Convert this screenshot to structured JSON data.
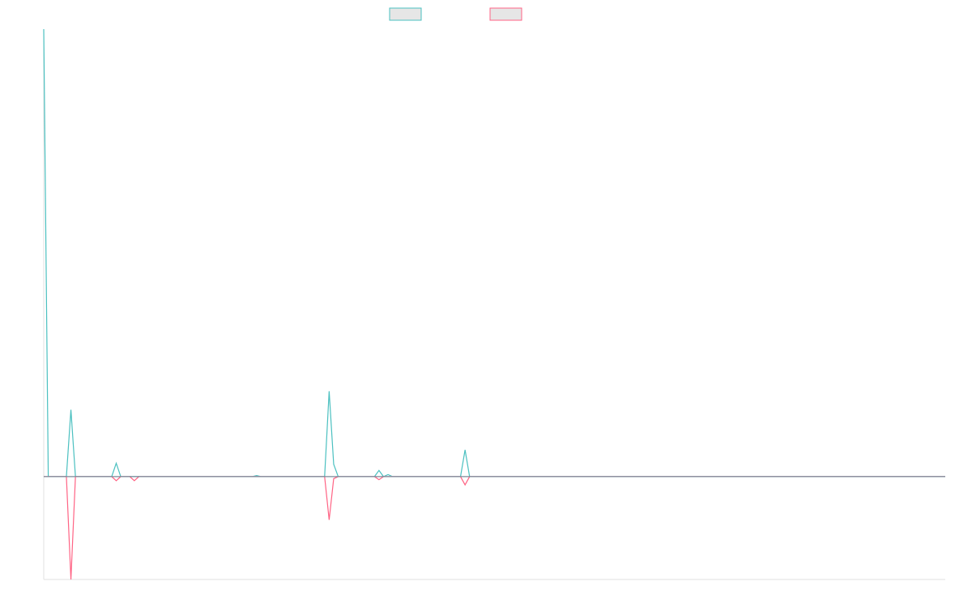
{
  "chart_data": {
    "type": "line",
    "title": "",
    "xlabel": "",
    "ylabel": "",
    "grid": false,
    "legend_position": "top-center",
    "colors": {
      "series_a": "#4bc0c0",
      "series_b": "#ff6384",
      "legend_fill": "#e6e6e6",
      "axis": "#e0e0e0"
    },
    "ylim": [
      -100,
      435
    ],
    "x_count": 200,
    "series": [
      {
        "name": "",
        "color": "#4bc0c0",
        "points": [
          [
            0,
            435
          ],
          [
            1,
            0
          ],
          [
            5,
            0
          ],
          [
            6,
            65
          ],
          [
            7,
            0
          ],
          [
            15,
            0
          ],
          [
            16,
            13
          ],
          [
            17,
            0
          ],
          [
            18,
            0
          ],
          [
            19,
            0
          ],
          [
            20,
            0
          ],
          [
            21,
            0
          ],
          [
            46,
            0
          ],
          [
            47,
            1
          ],
          [
            48,
            0
          ],
          [
            62,
            0
          ],
          [
            63,
            83
          ],
          [
            64,
            12
          ],
          [
            65,
            0
          ],
          [
            73,
            0
          ],
          [
            74,
            6
          ],
          [
            75,
            0
          ],
          [
            76,
            2
          ],
          [
            77,
            0
          ],
          [
            92,
            0
          ],
          [
            93,
            26
          ],
          [
            94,
            0
          ],
          [
            199,
            0
          ]
        ]
      },
      {
        "name": "",
        "color": "#ff6384",
        "points": [
          [
            0,
            0
          ],
          [
            5,
            0
          ],
          [
            6,
            -100
          ],
          [
            7,
            0
          ],
          [
            15,
            0
          ],
          [
            16,
            -4
          ],
          [
            17,
            0
          ],
          [
            19,
            0
          ],
          [
            20,
            -4
          ],
          [
            21,
            0
          ],
          [
            62,
            0
          ],
          [
            63,
            -42
          ],
          [
            64,
            -2
          ],
          [
            65,
            0
          ],
          [
            73,
            0
          ],
          [
            74,
            -3
          ],
          [
            75,
            0
          ],
          [
            92,
            0
          ],
          [
            93,
            -8
          ],
          [
            94,
            0
          ],
          [
            199,
            0
          ]
        ]
      }
    ]
  }
}
